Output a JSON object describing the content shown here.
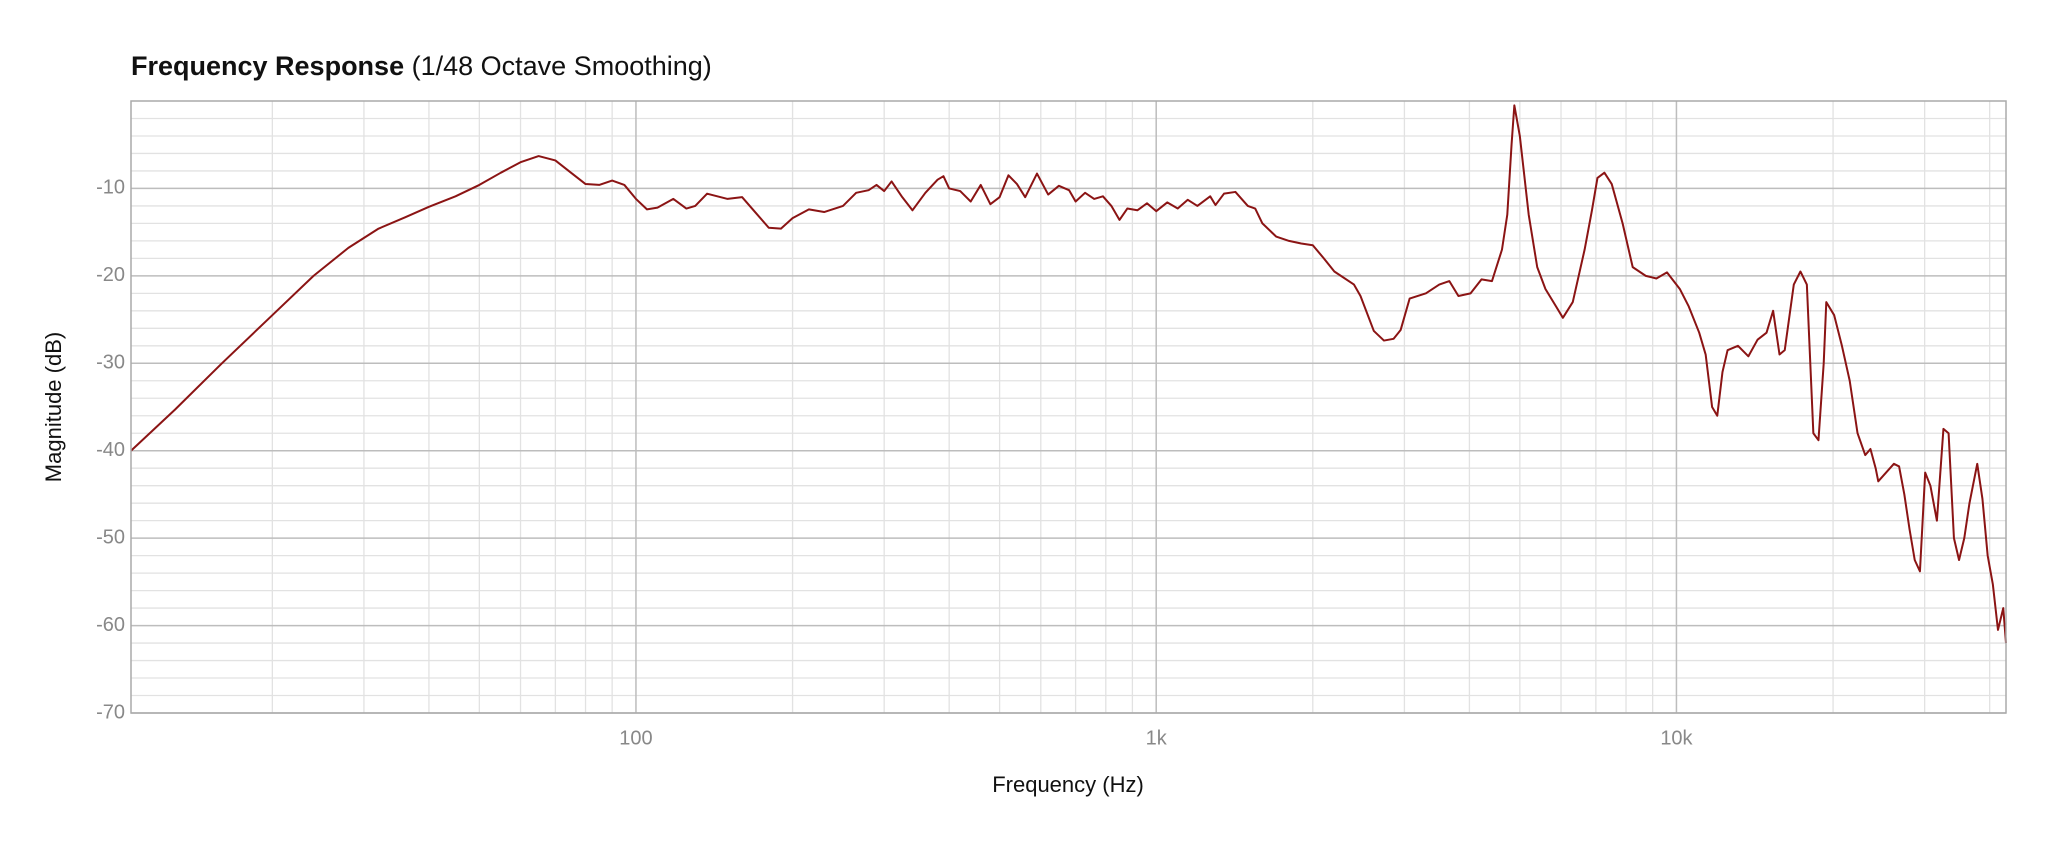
{
  "chart_data": {
    "type": "line",
    "title": "Frequency Response",
    "subtitle": "(1/48 Octave Smoothing)",
    "x_label": "Frequency (Hz)",
    "y_label": "Magnitude (dB)",
    "x_scale": "log",
    "grid": true,
    "color": "#8b1414",
    "xlim": [
      10.7,
      43000
    ],
    "ylim": [
      -70,
      0
    ],
    "xticks": [
      100,
      {
        "value": 1000,
        "label": "1k"
      },
      {
        "value": 10000,
        "label": "10k"
      }
    ],
    "yticks": [
      -70,
      -60,
      -50,
      -40,
      -30,
      -20,
      -10
    ],
    "xminorticks": [
      20,
      30,
      40,
      50,
      60,
      70,
      80,
      90,
      200,
      300,
      400,
      500,
      600,
      700,
      800,
      900,
      2000,
      3000,
      4000,
      5000,
      6000,
      7000,
      8000,
      9000,
      20000,
      30000,
      40000
    ],
    "yminorticks": [
      -68,
      -66,
      -64,
      -62,
      -58,
      -56,
      -54,
      -52,
      -48,
      -46,
      -44,
      -42,
      -38,
      -36,
      -34,
      -32,
      -28,
      -26,
      -24,
      -22,
      -18,
      -16,
      -14,
      -12,
      -8,
      -6,
      -4,
      -2
    ],
    "x": [
      10.7,
      13,
      16,
      20,
      24,
      28,
      32,
      36,
      40,
      45,
      50,
      55,
      60,
      65,
      70,
      75,
      80,
      85,
      90,
      95,
      100,
      105,
      110,
      118,
      125,
      130,
      137,
      150,
      160,
      170,
      180,
      190,
      200,
      215,
      230,
      250,
      265,
      280,
      290,
      300,
      310,
      325,
      340,
      360,
      380,
      390,
      400,
      420,
      440,
      460,
      480,
      500,
      520,
      540,
      560,
      590,
      620,
      650,
      680,
      700,
      730,
      760,
      790,
      820,
      850,
      880,
      920,
      960,
      1000,
      1050,
      1100,
      1150,
      1200,
      1270,
      1300,
      1350,
      1420,
      1500,
      1550,
      1600,
      1700,
      1800,
      1900,
      2000,
      2100,
      2200,
      2400,
      2470,
      2620,
      2740,
      2860,
      2950,
      3070,
      3300,
      3500,
      3660,
      3810,
      4020,
      4220,
      4420,
      4620,
      4730,
      4820,
      4880,
      5000,
      5200,
      5400,
      5600,
      5870,
      6050,
      6320,
      6660,
      6880,
      7050,
      7270,
      7510,
      7880,
      8240,
      8730,
      9150,
      9590,
      10150,
      10560,
      11060,
      11380,
      11710,
      11980,
      12260,
      12540,
      13130,
      13750,
      14320,
      14900,
      15340,
      15780,
      16150,
      16810,
      17310,
      17810,
      18330,
      18750,
      19190,
      19410,
      20100,
      20800,
      21530,
      22290,
      23060,
      23600,
      24150,
      24430,
      25290,
      26180,
      26790,
      27420,
      28060,
      28710,
      29380,
      30070,
      30770,
      31670,
      32600,
      33350,
      34150,
      34930,
      35750,
      36580,
      37860,
      38740,
      39650,
      40570,
      41500,
      42480,
      43000
    ],
    "values": [
      -40,
      -35.3,
      -30,
      -24.5,
      -20,
      -16.8,
      -14.6,
      -13.3,
      -12.1,
      -10.9,
      -9.6,
      -8.2,
      -7.0,
      -6.3,
      -6.8,
      -8.2,
      -9.5,
      -9.6,
      -9.1,
      -9.6,
      -11.2,
      -12.4,
      -12.2,
      -11.2,
      -12.3,
      -12.0,
      -10.6,
      -11.2,
      -11.0,
      -12.8,
      -14.5,
      -14.6,
      -13.4,
      -12.4,
      -12.7,
      -12.0,
      -10.5,
      -10.2,
      -9.6,
      -10.3,
      -9.2,
      -11.0,
      -12.5,
      -10.5,
      -9.0,
      -8.6,
      -10.0,
      -10.3,
      -11.5,
      -9.6,
      -11.8,
      -11.0,
      -8.5,
      -9.5,
      -11.0,
      -8.3,
      -10.7,
      -9.7,
      -10.2,
      -11.5,
      -10.5,
      -11.2,
      -10.9,
      -12.0,
      -13.6,
      -12.3,
      -12.5,
      -11.7,
      -12.6,
      -11.6,
      -12.3,
      -11.3,
      -12.0,
      -10.9,
      -11.9,
      -10.6,
      -10.4,
      -12.0,
      -12.3,
      -14.0,
      -15.5,
      -16.0,
      -16.3,
      -16.5,
      -18.0,
      -19.5,
      -21.0,
      -22.3,
      -26.3,
      -27.4,
      -27.2,
      -26.2,
      -22.6,
      -22.0,
      -21.0,
      -20.6,
      -22.3,
      -22.0,
      -20.4,
      -20.6,
      -17,
      -13,
      -5,
      -0.5,
      -4,
      -13,
      -19,
      -21.5,
      -23.5,
      -24.8,
      -23,
      -17,
      -12.5,
      -8.8,
      -8.2,
      -9.5,
      -14,
      -19,
      -20,
      -20.3,
      -19.6,
      -21.5,
      -23.5,
      -26.5,
      -29,
      -35,
      -36,
      -31,
      -28.5,
      -28.0,
      -29.2,
      -27.3,
      -26.5,
      -24,
      -29,
      -28.5,
      -21,
      -19.5,
      -21,
      -38,
      -38.8,
      -30,
      -23,
      -24.5,
      -28,
      -32,
      -38,
      -40.5,
      -39.8,
      -42,
      -43.5,
      -42.5,
      -41.5,
      -41.8,
      -45,
      -49,
      -52.5,
      -53.8,
      -42.5,
      -44,
      -48,
      -37.5,
      -38,
      -50,
      -52.5,
      -50,
      -46,
      -41.5,
      -45.5,
      -52,
      -55.3,
      -60.5,
      -58,
      -62
    ]
  }
}
